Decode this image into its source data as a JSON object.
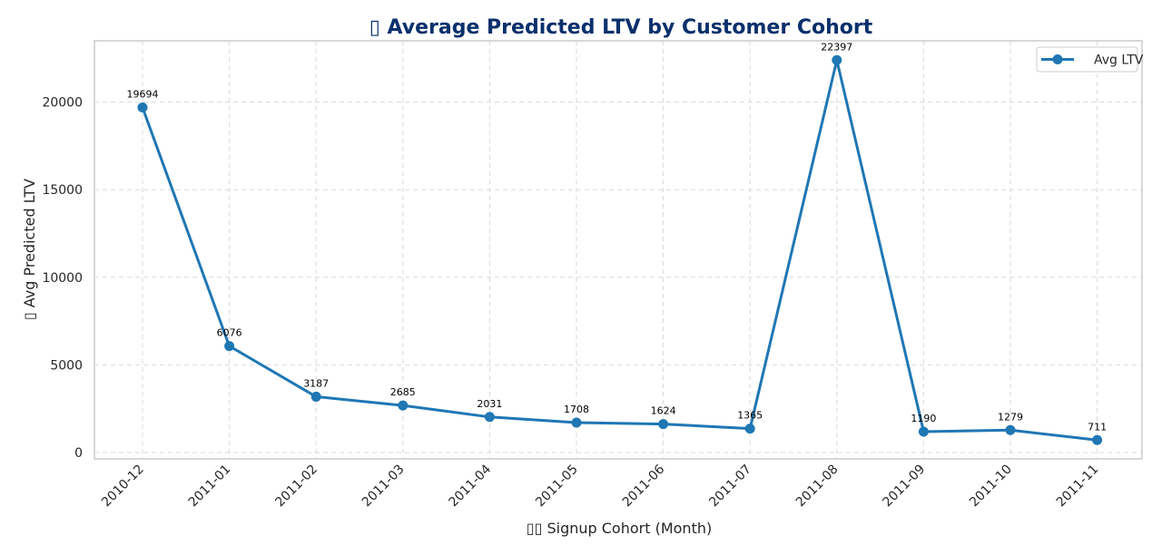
{
  "chart_data": {
    "type": "line",
    "title": "▯ Average Predicted LTV by Customer Cohort",
    "xlabel": "▯▯ Signup Cohort (Month)",
    "ylabel": "▯ Avg Predicted LTV",
    "categories": [
      "2010-12",
      "2011-01",
      "2011-02",
      "2011-03",
      "2011-04",
      "2011-05",
      "2011-06",
      "2011-07",
      "2011-08",
      "2011-09",
      "2011-10",
      "2011-11"
    ],
    "series": [
      {
        "name": "Avg LTV",
        "values": [
          19694,
          6076,
          3187,
          2685,
          2031,
          1708,
          1624,
          1365,
          22397,
          1190,
          1279,
          711
        ],
        "data_labels": [
          "19694",
          "6076",
          "3187",
          "2685",
          "2031",
          "1708",
          "1624",
          "1365",
          "22397",
          "1190",
          "1279",
          "711"
        ]
      }
    ],
    "yticks": [
      0,
      5000,
      10000,
      15000,
      20000
    ],
    "ylim": [
      -350,
      23500
    ],
    "grid": true,
    "legend_position": "top-right",
    "colors": {
      "line": "#1f77b4",
      "title": "#08306b"
    }
  }
}
